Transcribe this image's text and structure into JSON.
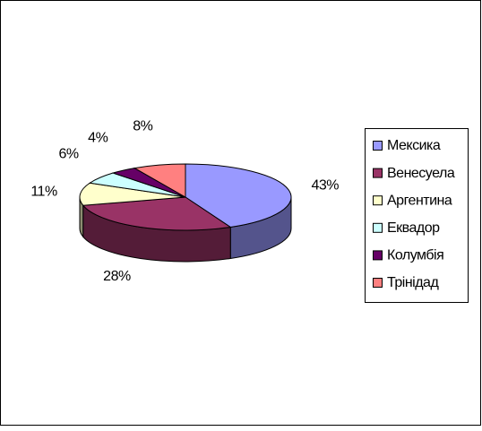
{
  "chart_data": {
    "type": "pie",
    "categories": [
      "Мексика",
      "Венесуела",
      "Аргентина",
      "Еквадор",
      "Колумбія",
      "Трінідад"
    ],
    "values": [
      43,
      28,
      11,
      6,
      4,
      8
    ],
    "value_labels": [
      "43%",
      "28%",
      "11%",
      "6%",
      "4%",
      "8%"
    ],
    "colors": [
      "#9999ff",
      "#993366",
      "#ffffcc",
      "#ccffff",
      "#660066",
      "#ff8080"
    ],
    "legend": "right"
  }
}
